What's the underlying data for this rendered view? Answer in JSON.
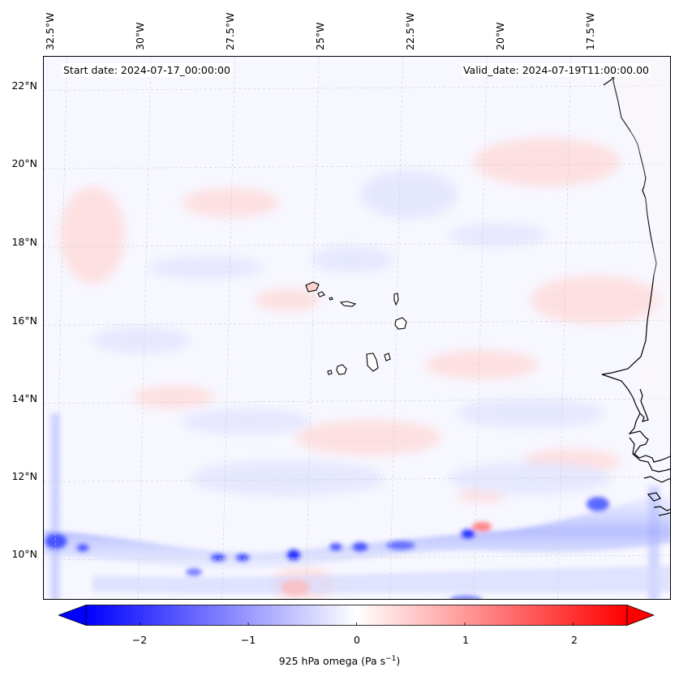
{
  "map": {
    "start_date": "Start date: 2024-07-17_00:00:00",
    "valid_date": "Valid_date: 2024-07-19T11:00:00.00",
    "longitude_labels": [
      "32.5°W",
      "30°W",
      "27.5°W",
      "25°W",
      "22.5°W",
      "20°W",
      "17.5°W"
    ],
    "latitude_labels": [
      "22°N",
      "20°N",
      "18°N",
      "16°N",
      "14°N",
      "12°N",
      "10°N"
    ],
    "lon_range": [
      -33.0,
      -14.3
    ],
    "lat_range": [
      8.9,
      22.8
    ],
    "lons": [
      -32.5,
      -30,
      -27.5,
      -25,
      -22.5,
      -20,
      -17.5
    ],
    "lats": [
      22,
      20,
      18,
      16,
      14,
      12,
      10
    ]
  },
  "colorbar": {
    "label": "925 hPa omega (Pa s",
    "label_exponent": "−1",
    "label_close": ")",
    "ticks": [
      "−2",
      "−1",
      "0",
      "1",
      "2"
    ],
    "tick_values": [
      -2,
      -1,
      0,
      1,
      2
    ],
    "range": [
      -2.5,
      2.5
    ],
    "extend": "both",
    "colormap": "bwr",
    "low_color": "#0000ff",
    "mid_color": "#ffffff",
    "high_color": "#ff0000"
  },
  "features": {
    "coastline_color": "#000000",
    "gridline_color": "#cccccc"
  }
}
